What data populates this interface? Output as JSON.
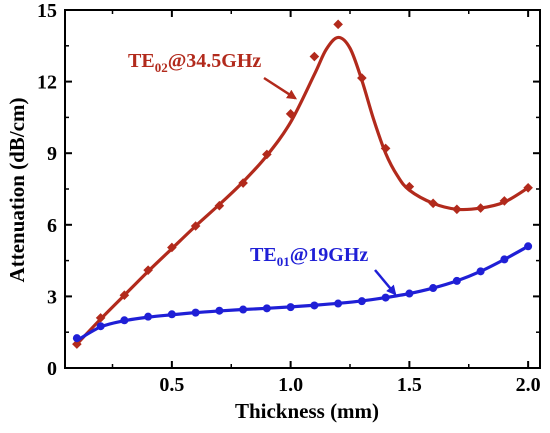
{
  "chart_data": {
    "type": "line",
    "xlabel": "Thickness (mm)",
    "ylabel": "Attenuation (dB/cm)",
    "xlim": [
      0.05,
      2.05
    ],
    "ylim": [
      0,
      15
    ],
    "xticks": [
      "0.5",
      "1.0",
      "1.5",
      "2.0"
    ],
    "xtick_values": [
      0.5,
      1.0,
      1.5,
      2.0
    ],
    "yticks": [
      "0",
      "3",
      "6",
      "9",
      "12",
      "15"
    ],
    "ytick_values": [
      0,
      3,
      6,
      9,
      12,
      15
    ],
    "series": [
      {
        "name": "TE02@34.5GHz",
        "name_main": "TE",
        "name_sub": "02",
        "name_rest": "@34.5GHz",
        "color": "#b22a1c",
        "marker": "diamond",
        "points": [
          [
            0.1,
            1.0
          ],
          [
            0.2,
            2.1
          ],
          [
            0.3,
            3.05
          ],
          [
            0.4,
            4.1
          ],
          [
            0.5,
            5.05
          ],
          [
            0.6,
            5.95
          ],
          [
            0.7,
            6.8
          ],
          [
            0.8,
            7.75
          ],
          [
            0.9,
            8.95
          ],
          [
            1.0,
            10.65
          ],
          [
            1.1,
            13.05
          ],
          [
            1.2,
            14.4
          ],
          [
            1.3,
            12.15
          ],
          [
            1.4,
            9.2
          ],
          [
            1.5,
            7.6
          ],
          [
            1.6,
            6.9
          ],
          [
            1.7,
            6.65
          ],
          [
            1.8,
            6.7
          ],
          [
            1.9,
            7.0
          ],
          [
            2.0,
            7.55
          ]
        ],
        "fit": [
          [
            0.1,
            1.0
          ],
          [
            0.2,
            2.05
          ],
          [
            0.3,
            3.05
          ],
          [
            0.4,
            4.05
          ],
          [
            0.5,
            5.0
          ],
          [
            0.6,
            5.95
          ],
          [
            0.7,
            6.85
          ],
          [
            0.8,
            7.8
          ],
          [
            0.9,
            8.9
          ],
          [
            1.0,
            10.3
          ],
          [
            1.1,
            12.3
          ],
          [
            1.15,
            13.35
          ],
          [
            1.2,
            13.85
          ],
          [
            1.25,
            13.4
          ],
          [
            1.3,
            12.05
          ],
          [
            1.35,
            10.4
          ],
          [
            1.4,
            9.0
          ],
          [
            1.45,
            8.05
          ],
          [
            1.5,
            7.45
          ],
          [
            1.6,
            6.9
          ],
          [
            1.7,
            6.65
          ],
          [
            1.8,
            6.7
          ],
          [
            1.9,
            6.95
          ],
          [
            2.0,
            7.55
          ]
        ]
      },
      {
        "name": "TE01@19GHz",
        "name_main": "TE",
        "name_sub": "01",
        "name_rest": "@19GHz",
        "color": "#1f1fd6",
        "marker": "circle",
        "points": [
          [
            0.1,
            1.25
          ],
          [
            0.2,
            1.75
          ],
          [
            0.3,
            2.0
          ],
          [
            0.4,
            2.15
          ],
          [
            0.5,
            2.25
          ],
          [
            0.6,
            2.32
          ],
          [
            0.7,
            2.4
          ],
          [
            0.8,
            2.45
          ],
          [
            0.9,
            2.5
          ],
          [
            1.0,
            2.55
          ],
          [
            1.1,
            2.62
          ],
          [
            1.2,
            2.7
          ],
          [
            1.3,
            2.8
          ],
          [
            1.4,
            2.95
          ],
          [
            1.5,
            3.12
          ],
          [
            1.6,
            3.35
          ],
          [
            1.7,
            3.65
          ],
          [
            1.8,
            4.05
          ],
          [
            1.9,
            4.55
          ],
          [
            2.0,
            5.1
          ]
        ],
        "fit": [
          [
            0.1,
            1.15
          ],
          [
            0.2,
            1.72
          ],
          [
            0.3,
            1.98
          ],
          [
            0.4,
            2.13
          ],
          [
            0.5,
            2.23
          ],
          [
            0.6,
            2.32
          ],
          [
            0.7,
            2.39
          ],
          [
            0.8,
            2.45
          ],
          [
            0.9,
            2.5
          ],
          [
            1.0,
            2.56
          ],
          [
            1.1,
            2.63
          ],
          [
            1.2,
            2.71
          ],
          [
            1.3,
            2.81
          ],
          [
            1.4,
            2.95
          ],
          [
            1.5,
            3.12
          ],
          [
            1.6,
            3.35
          ],
          [
            1.7,
            3.65
          ],
          [
            1.8,
            4.05
          ],
          [
            1.9,
            4.55
          ],
          [
            2.0,
            5.1
          ]
        ]
      }
    ],
    "annotations": [
      {
        "series_index": 0,
        "arrow_to": [
          1.02,
          11.3
        ]
      },
      {
        "series_index": 1,
        "arrow_to": [
          1.44,
          3.1
        ]
      }
    ],
    "grid": false,
    "legend": "none"
  }
}
